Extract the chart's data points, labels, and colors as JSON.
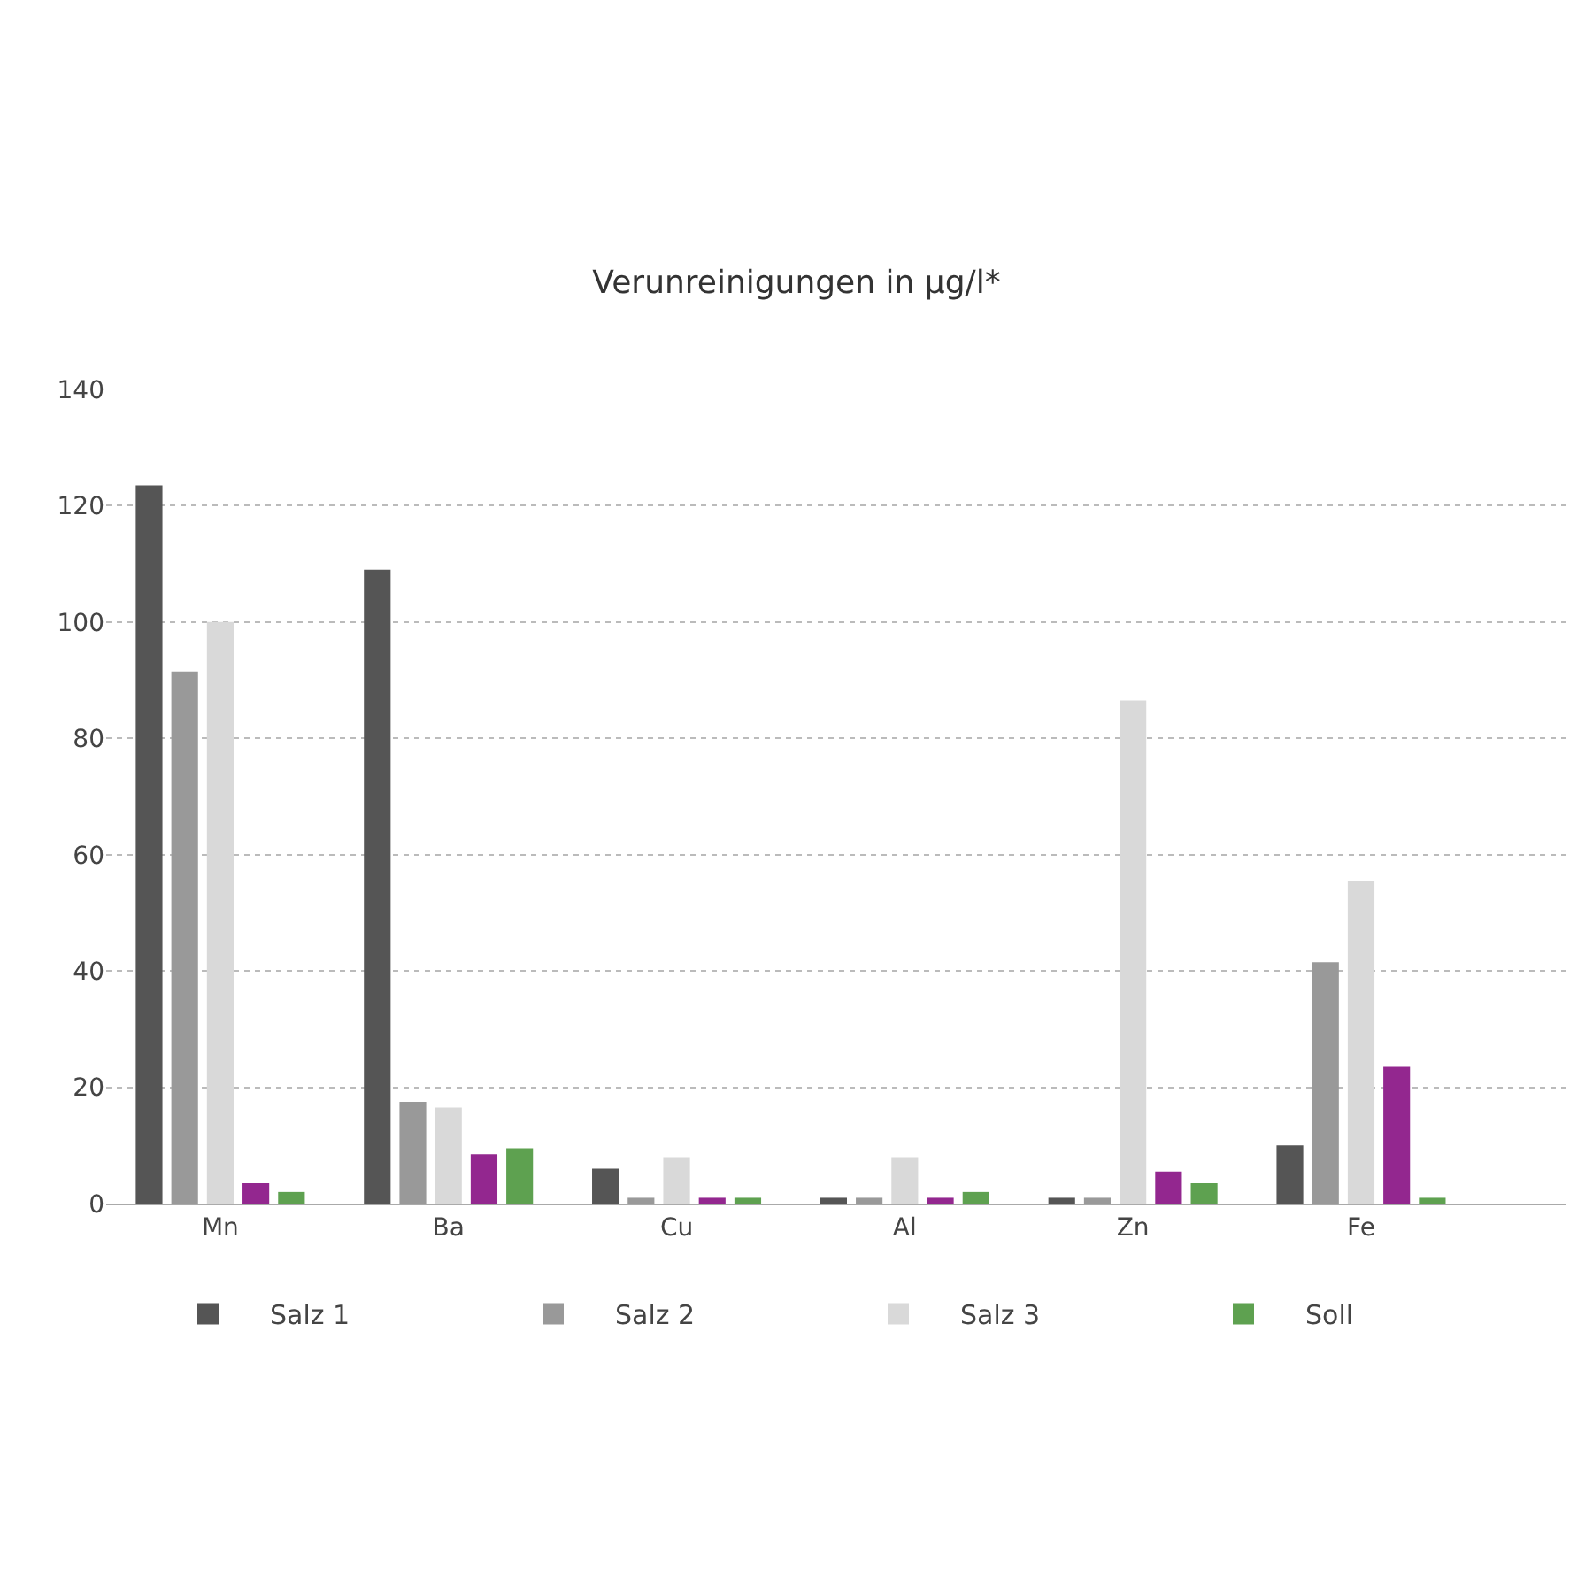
{
  "chart_data": {
    "type": "bar",
    "title": "Verunreinigungen in µg/l*",
    "categories": [
      "Mn",
      "Ba",
      "Cu",
      "Al",
      "Zn",
      "Fe"
    ],
    "series": [
      {
        "name": "Salz 1",
        "color": "#555555",
        "values": [
          123.5,
          109,
          6,
          1,
          1,
          10
        ]
      },
      {
        "name": "Salz 2",
        "color": "#999999",
        "values": [
          91.5,
          17.5,
          1,
          1,
          1,
          41.5
        ]
      },
      {
        "name": "Salz 3",
        "color": "#d9d9d9",
        "values": [
          100,
          16.5,
          8,
          8,
          86.5,
          55.5
        ]
      },
      {
        "color": "#93278f",
        "values": [
          3.5,
          8.5,
          1,
          1,
          5.5,
          23.5
        ]
      },
      {
        "name": "Soll",
        "color": "#5ea150",
        "values": [
          2,
          9.5,
          1,
          2,
          3.5,
          1
        ]
      }
    ],
    "ylim": [
      0,
      140
    ],
    "yticks": [
      0,
      20,
      40,
      60,
      80,
      100,
      120,
      140
    ],
    "grid": "y",
    "legend": "bottom"
  }
}
